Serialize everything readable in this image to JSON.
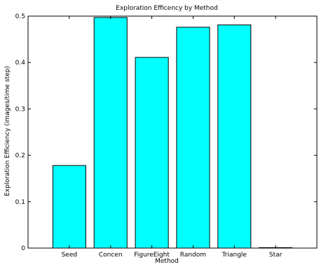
{
  "chart_data": {
    "type": "bar",
    "title": "Exploration Efficency by Method",
    "xlabel": "Method",
    "ylabel": "Exploration Efficiency (images/time step)",
    "categories": [
      "Seed",
      "Concen",
      "FigureEight",
      "Random",
      "Triangle",
      "Star"
    ],
    "values": [
      0.178,
      0.497,
      0.411,
      0.476,
      0.481,
      0.001
    ],
    "ylim": [
      0,
      0.5
    ],
    "yticks": [
      0,
      0.1,
      0.2,
      0.3,
      0.4,
      0.5
    ],
    "ytick_labels": [
      "0",
      "0.1",
      "0.2",
      "0.3",
      "0.4",
      "0.5"
    ],
    "grid": false,
    "bar_color": "#00ffff",
    "bar_edge_color": "#000000"
  }
}
